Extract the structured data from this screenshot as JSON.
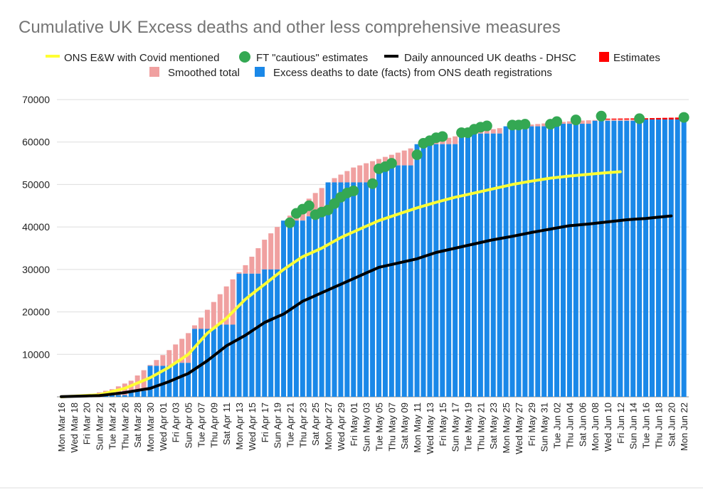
{
  "chart_data": {
    "type": "bar",
    "title": "Cumulative UK Excess deaths and other less comprehensive measures",
    "xlabel": "",
    "ylabel": "",
    "ylim": [
      0,
      70000
    ],
    "yticks": [
      "70000",
      "60000",
      "50000",
      "40000",
      "30000",
      "20000",
      "10000"
    ],
    "grid": true,
    "legend_position": "top",
    "colors": {
      "ons": "#ffff33",
      "ft": "#34a853",
      "dhsc": "#000000",
      "estimates": "#ff0000",
      "smoothed": "#f0a0a0",
      "facts": "#1a88e8"
    },
    "legend": {
      "ons": "ONS E&W with Covid mentioned",
      "ft": "FT \"cautious\" estimates",
      "dhsc": "Daily announced UK deaths - DHSC",
      "estimates": "Estimates",
      "smoothed": "Smoothed total",
      "facts": "Excess deaths to date (facts) from ONS death registrations"
    },
    "x_tick_labels": [
      "Mon Mar 16",
      "Wed Mar 18",
      "Fri Mar 20",
      "Sun Mar 22",
      "Tue Mar 24",
      "Thu Mar 26",
      "Sat Mar 28",
      "Mon Mar 30",
      "Wed Apr 01",
      "Fri Apr 03",
      "Sun Apr 05",
      "Tue Apr 07",
      "Thu Apr 09",
      "Sat Apr 11",
      "Mon Apr 13",
      "Wed Apr 15",
      "Fri Apr 17",
      "Sun Apr 19",
      "Tue Apr 21",
      "Thu Apr 23",
      "Sat Apr 25",
      "Mon Apr 27",
      "Wed Apr 29",
      "Fri May 01",
      "Sun May 03",
      "Tue May 05",
      "Thu May 07",
      "Sat May 09",
      "Mon May 11",
      "Wed May 13",
      "Fri May 15",
      "Sun May 17",
      "Tue May 19",
      "Thu May 21",
      "Sat May 23",
      "Mon May 25",
      "Wed May 27",
      "Fri May 29",
      "Sun May 31",
      "Tue Jun 02",
      "Thu Jun 04",
      "Sat Jun 06",
      "Mon Jun 08",
      "Wed Jun 10",
      "Fri Jun 12",
      "Sun Jun 14",
      "Tue Jun 16",
      "Thu Jun 18",
      "Sat Jun 20",
      "Mon Jun 22"
    ],
    "x_range": [
      "Mar 16",
      "Jun 22"
    ],
    "series": [
      {
        "name": "Excess deaths to date (facts) from ONS death registrations",
        "kind": "bar-step",
        "points": [
          [
            "Mar 16",
            0
          ],
          [
            "Mar 23",
            400
          ],
          [
            "Mar 27",
            1400
          ],
          [
            "Mar 30",
            7300
          ],
          [
            "Apr 03",
            8000
          ],
          [
            "Apr 06",
            16000
          ],
          [
            "Apr 10",
            17000
          ],
          [
            "Apr 13",
            29000
          ],
          [
            "Apr 17",
            30000
          ],
          [
            "Apr 20",
            41500
          ],
          [
            "Apr 24",
            42500
          ],
          [
            "Apr 27",
            50500
          ],
          [
            "May 05",
            54500
          ],
          [
            "May 11",
            59500
          ],
          [
            "May 18",
            62000
          ],
          [
            "May 25",
            63700
          ],
          [
            "Jun 01",
            64300
          ],
          [
            "Jun 08",
            65000
          ],
          [
            "Jun 15",
            65300
          ]
        ]
      },
      {
        "name": "Smoothed total",
        "kind": "bar-stack",
        "points": [
          [
            "Mar 16",
            0
          ],
          [
            "Mar 20",
            300
          ],
          [
            "Mar 24",
            1800
          ],
          [
            "Mar 27",
            3800
          ],
          [
            "Mar 30",
            7500
          ],
          [
            "Apr 02",
            11000
          ],
          [
            "Apr 05",
            15000
          ],
          [
            "Apr 08",
            20500
          ],
          [
            "Apr 11",
            26000
          ],
          [
            "Apr 14",
            31000
          ],
          [
            "Apr 17",
            37000
          ],
          [
            "Apr 19",
            40000
          ],
          [
            "Apr 22",
            44000
          ],
          [
            "Apr 25",
            48000
          ],
          [
            "Apr 28",
            51500
          ],
          [
            "May 01",
            54000
          ],
          [
            "May 04",
            55500
          ],
          [
            "May 07",
            57000
          ],
          [
            "May 10",
            58500
          ],
          [
            "May 13",
            59700
          ],
          [
            "May 16",
            61000
          ],
          [
            "May 19",
            62000
          ],
          [
            "May 22",
            62800
          ],
          [
            "May 25",
            63500
          ],
          [
            "May 28",
            64000
          ],
          [
            "Jun 01",
            64500
          ],
          [
            "Jun 05",
            65000
          ],
          [
            "Jun 10",
            65300
          ],
          [
            "Jun 22",
            65300
          ]
        ]
      },
      {
        "name": "Estimates",
        "kind": "bar-stack",
        "points": [
          [
            "Jun 10",
            65500
          ],
          [
            "Jun 16",
            65600
          ],
          [
            "Jun 22",
            65800
          ]
        ]
      },
      {
        "name": "ONS E&W with Covid mentioned",
        "kind": "line",
        "points": [
          [
            "Mar 16",
            0
          ],
          [
            "Mar 22",
            500
          ],
          [
            "Mar 26",
            2000
          ],
          [
            "Mar 30",
            4500
          ],
          [
            "Apr 02",
            7000
          ],
          [
            "Apr 05",
            10000
          ],
          [
            "Apr 08",
            15000
          ],
          [
            "Apr 11",
            18500
          ],
          [
            "Apr 14",
            23000
          ],
          [
            "Apr 17",
            26500
          ],
          [
            "Apr 20",
            30000
          ],
          [
            "Apr 23",
            33000
          ],
          [
            "Apr 26",
            35000
          ],
          [
            "Apr 29",
            37500
          ],
          [
            "May 02",
            39500
          ],
          [
            "May 05",
            41500
          ],
          [
            "May 08",
            43000
          ],
          [
            "May 11",
            44500
          ],
          [
            "May 14",
            45800
          ],
          [
            "May 17",
            47000
          ],
          [
            "May 20",
            48000
          ],
          [
            "May 23",
            49000
          ],
          [
            "May 26",
            50000
          ],
          [
            "May 29",
            50800
          ],
          [
            "Jun 01",
            51500
          ],
          [
            "Jun 04",
            52000
          ],
          [
            "Jun 07",
            52400
          ],
          [
            "Jun 10",
            52800
          ],
          [
            "Jun 12",
            53000
          ]
        ]
      },
      {
        "name": "Daily announced UK deaths - DHSC",
        "kind": "line",
        "points": [
          [
            "Mar 16",
            50
          ],
          [
            "Mar 22",
            300
          ],
          [
            "Mar 26",
            1000
          ],
          [
            "Mar 30",
            2000
          ],
          [
            "Apr 02",
            3600
          ],
          [
            "Apr 05",
            5500
          ],
          [
            "Apr 08",
            8500
          ],
          [
            "Apr 11",
            12000
          ],
          [
            "Apr 14",
            14500
          ],
          [
            "Apr 17",
            17500
          ],
          [
            "Apr 20",
            19500
          ],
          [
            "Apr 23",
            22500
          ],
          [
            "Apr 26",
            24500
          ],
          [
            "Apr 29",
            26500
          ],
          [
            "May 02",
            28500
          ],
          [
            "May 05",
            30500
          ],
          [
            "May 08",
            31500
          ],
          [
            "May 11",
            32500
          ],
          [
            "May 14",
            34000
          ],
          [
            "May 17",
            35000
          ],
          [
            "May 20",
            36000
          ],
          [
            "May 23",
            37000
          ],
          [
            "May 26",
            37800
          ],
          [
            "May 29",
            38700
          ],
          [
            "Jun 01",
            39500
          ],
          [
            "Jun 04",
            40300
          ],
          [
            "Jun 07",
            40700
          ],
          [
            "Jun 10",
            41200
          ],
          [
            "Jun 13",
            41700
          ],
          [
            "Jun 16",
            42000
          ],
          [
            "Jun 20",
            42600
          ]
        ]
      },
      {
        "name": "FT \"cautious\" estimates",
        "kind": "scatter",
        "points": [
          [
            "Apr 21",
            41000
          ],
          [
            "Apr 22",
            43200
          ],
          [
            "Apr 23",
            44200
          ],
          [
            "Apr 24",
            45000
          ],
          [
            "Apr 25",
            42900
          ],
          [
            "Apr 26",
            43500
          ],
          [
            "Apr 27",
            44000
          ],
          [
            "Apr 28",
            45500
          ],
          [
            "Apr 29",
            47000
          ],
          [
            "Apr 30",
            48000
          ],
          [
            "May 01",
            48500
          ],
          [
            "May 04",
            50200
          ],
          [
            "May 05",
            53700
          ],
          [
            "May 06",
            54200
          ],
          [
            "May 07",
            55000
          ],
          [
            "May 11",
            57000
          ],
          [
            "May 12",
            59700
          ],
          [
            "May 13",
            60300
          ],
          [
            "May 14",
            61000
          ],
          [
            "May 15",
            61300
          ],
          [
            "May 18",
            62200
          ],
          [
            "May 19",
            62200
          ],
          [
            "May 20",
            63000
          ],
          [
            "May 21",
            63500
          ],
          [
            "May 22",
            63800
          ],
          [
            "May 26",
            64000
          ],
          [
            "May 27",
            64000
          ],
          [
            "May 28",
            64200
          ],
          [
            "Jun 01",
            64200
          ],
          [
            "Jun 02",
            64800
          ],
          [
            "Jun 05",
            65200
          ],
          [
            "Jun 09",
            66100
          ],
          [
            "Jun 15",
            65500
          ],
          [
            "Jun 22",
            65800
          ]
        ]
      }
    ]
  }
}
